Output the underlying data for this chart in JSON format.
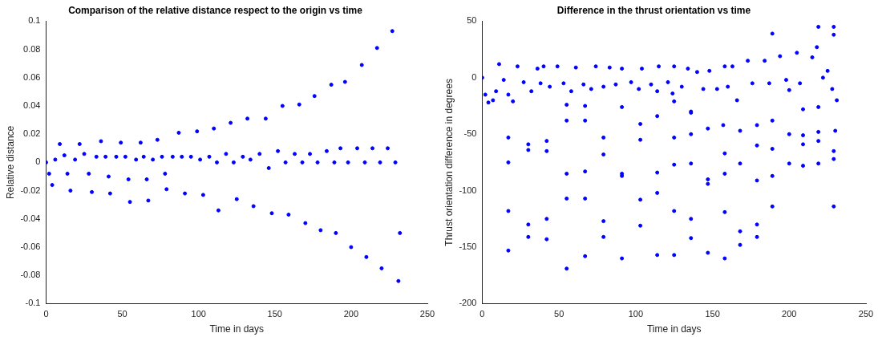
{
  "chart_data": [
    {
      "type": "scatter",
      "title": "Comparison of the relative distance respect to the origin vs time",
      "xlabel": "Time in days",
      "ylabel": "Relative distance",
      "xlim": [
        0,
        250
      ],
      "xticks": [
        0,
        50,
        100,
        150,
        200,
        250
      ],
      "ylim": [
        -0.1,
        0.1
      ],
      "yticks": [
        -0.1,
        -0.08,
        -0.06,
        -0.04,
        -0.02,
        0,
        0.02,
        0.04,
        0.06,
        0.08,
        0.1
      ],
      "grid": false,
      "legend": false,
      "marker": "circle",
      "series": [
        {
          "color": "#0000ff",
          "x": [
            0,
            2,
            4,
            6,
            9,
            12,
            14,
            16,
            19,
            22,
            25,
            28,
            30,
            33,
            36,
            39,
            41,
            42,
            46,
            49,
            52,
            54,
            55,
            59,
            62,
            64,
            66,
            67,
            70,
            73,
            76,
            78,
            79,
            83,
            87,
            89,
            91,
            95,
            99,
            101,
            103,
            107,
            110,
            112,
            113,
            118,
            121,
            123,
            125,
            129,
            132,
            134,
            136,
            140,
            144,
            146,
            148,
            152,
            155,
            157,
            159,
            163,
            166,
            168,
            170,
            173,
            176,
            178,
            180,
            184,
            187,
            189,
            190,
            193,
            196,
            198,
            200,
            204,
            207,
            209,
            210,
            214,
            217,
            219,
            220,
            224,
            227,
            229,
            231,
            232
          ],
          "values": [
            0,
            -0.008,
            -0.016,
            0.002,
            0.013,
            0.005,
            -0.008,
            -0.02,
            0.002,
            0.013,
            0.006,
            -0.008,
            -0.021,
            0.004,
            0.015,
            0.004,
            -0.01,
            -0.022,
            0.004,
            0.014,
            0.004,
            -0.012,
            -0.028,
            0.002,
            0.014,
            0.004,
            -0.012,
            -0.027,
            0.002,
            0.016,
            0.004,
            -0.008,
            -0.019,
            0.004,
            0.021,
            0.004,
            -0.022,
            0.004,
            0.022,
            0.002,
            -0.023,
            0.004,
            0.024,
            0,
            -0.034,
            0.006,
            0.028,
            0,
            -0.026,
            0.004,
            0.031,
            0.002,
            -0.031,
            0.006,
            0.031,
            -0.004,
            -0.036,
            0.008,
            0.04,
            0,
            -0.037,
            0.006,
            0.041,
            0,
            -0.043,
            0.006,
            0.047,
            0,
            -0.048,
            0.008,
            0.055,
            0,
            -0.05,
            0.01,
            0.057,
            0,
            -0.06,
            0.01,
            0.069,
            0,
            -0.067,
            0.01,
            0.081,
            0,
            -0.075,
            0.01,
            0.093,
            0,
            -0.084,
            -0.05
          ]
        }
      ]
    },
    {
      "type": "scatter",
      "title": "Difference in the thrust orientation vs time",
      "xlabel": "Time in days",
      "ylabel": "Thrust orientation difference in degrees",
      "xlim": [
        0,
        250
      ],
      "xticks": [
        0,
        50,
        100,
        150,
        200,
        250
      ],
      "ylim": [
        -200,
        50
      ],
      "yticks": [
        -200,
        -150,
        -100,
        -50,
        0,
        50
      ],
      "grid": false,
      "legend": false,
      "marker": "circle",
      "series": [
        {
          "color": "#0000ff",
          "x": [
            0,
            2,
            4,
            7,
            9,
            11,
            14,
            17,
            20,
            23,
            27,
            32,
            36,
            38,
            40,
            44,
            49,
            53,
            58,
            61,
            66,
            71,
            74,
            79,
            83,
            87,
            91,
            97,
            102,
            104,
            110,
            114,
            115,
            121,
            124,
            125,
            130,
            134,
            136,
            140,
            144,
            147,
            148,
            153,
            157,
            158,
            160,
            163,
            166,
            168,
            173,
            176,
            179,
            184,
            187,
            189,
            194,
            198,
            200,
            205,
            207,
            209,
            215,
            218,
            219,
            222,
            225,
            228,
            230,
            231,
            17,
            17,
            17,
            17,
            30,
            30,
            30,
            30,
            42,
            42,
            42,
            42,
            55,
            55,
            55,
            55,
            55,
            67,
            67,
            67,
            67,
            67,
            79,
            79,
            79,
            79,
            91,
            91,
            91,
            91,
            103,
            103,
            103,
            103,
            114,
            114,
            114,
            114,
            125,
            125,
            125,
            125,
            125,
            136,
            136,
            136,
            136,
            136,
            147,
            147,
            147,
            158,
            158,
            158,
            158,
            168,
            168,
            168,
            179,
            179,
            179,
            179,
            189,
            189,
            189,
            189,
            200,
            200,
            209,
            209,
            209,
            219,
            219,
            219,
            219,
            229,
            229,
            229,
            229,
            229
          ],
          "values": [
            0,
            -15,
            -22,
            -20,
            -12,
            12,
            -2,
            -15,
            -21,
            10,
            -4,
            -12,
            8,
            -5,
            10,
            -8,
            10,
            -5,
            -12,
            9,
            -6,
            -10,
            10,
            -8,
            9,
            -6,
            8,
            -4,
            -10,
            8,
            -6,
            -12,
            10,
            -4,
            -14,
            10,
            -8,
            8,
            -30,
            5,
            -10,
            -45,
            6,
            -10,
            -42,
            10,
            -8,
            10,
            -20,
            -47,
            15,
            -5,
            -42,
            15,
            -5,
            -38,
            19,
            -2,
            -11,
            22,
            -5,
            -28,
            18,
            27,
            -26,
            0,
            6,
            -10,
            -47,
            -20,
            -53,
            -75,
            -118,
            -153,
            -59,
            -64,
            -130,
            -141,
            -56,
            -65,
            -125,
            -143,
            -24,
            -38,
            -85,
            -107,
            -169,
            -25,
            -38,
            -83,
            -107,
            -158,
            -53,
            -68,
            -127,
            -141,
            -26,
            -85,
            -87,
            -160,
            -41,
            -55,
            -108,
            -131,
            -34,
            -84,
            -102,
            -157,
            -21,
            -53,
            -77,
            -118,
            -157,
            -31,
            -50,
            -76,
            -125,
            -142,
            -90,
            -94,
            -155,
            -67,
            -85,
            -119,
            -160,
            -76,
            -136,
            -148,
            -60,
            -91,
            -130,
            -141,
            39,
            -63,
            -87,
            -114,
            -50,
            -76,
            -51,
            -59,
            -78,
            45,
            -48,
            -56,
            -76,
            45,
            38,
            -65,
            -72,
            -114
          ]
        }
      ]
    }
  ]
}
